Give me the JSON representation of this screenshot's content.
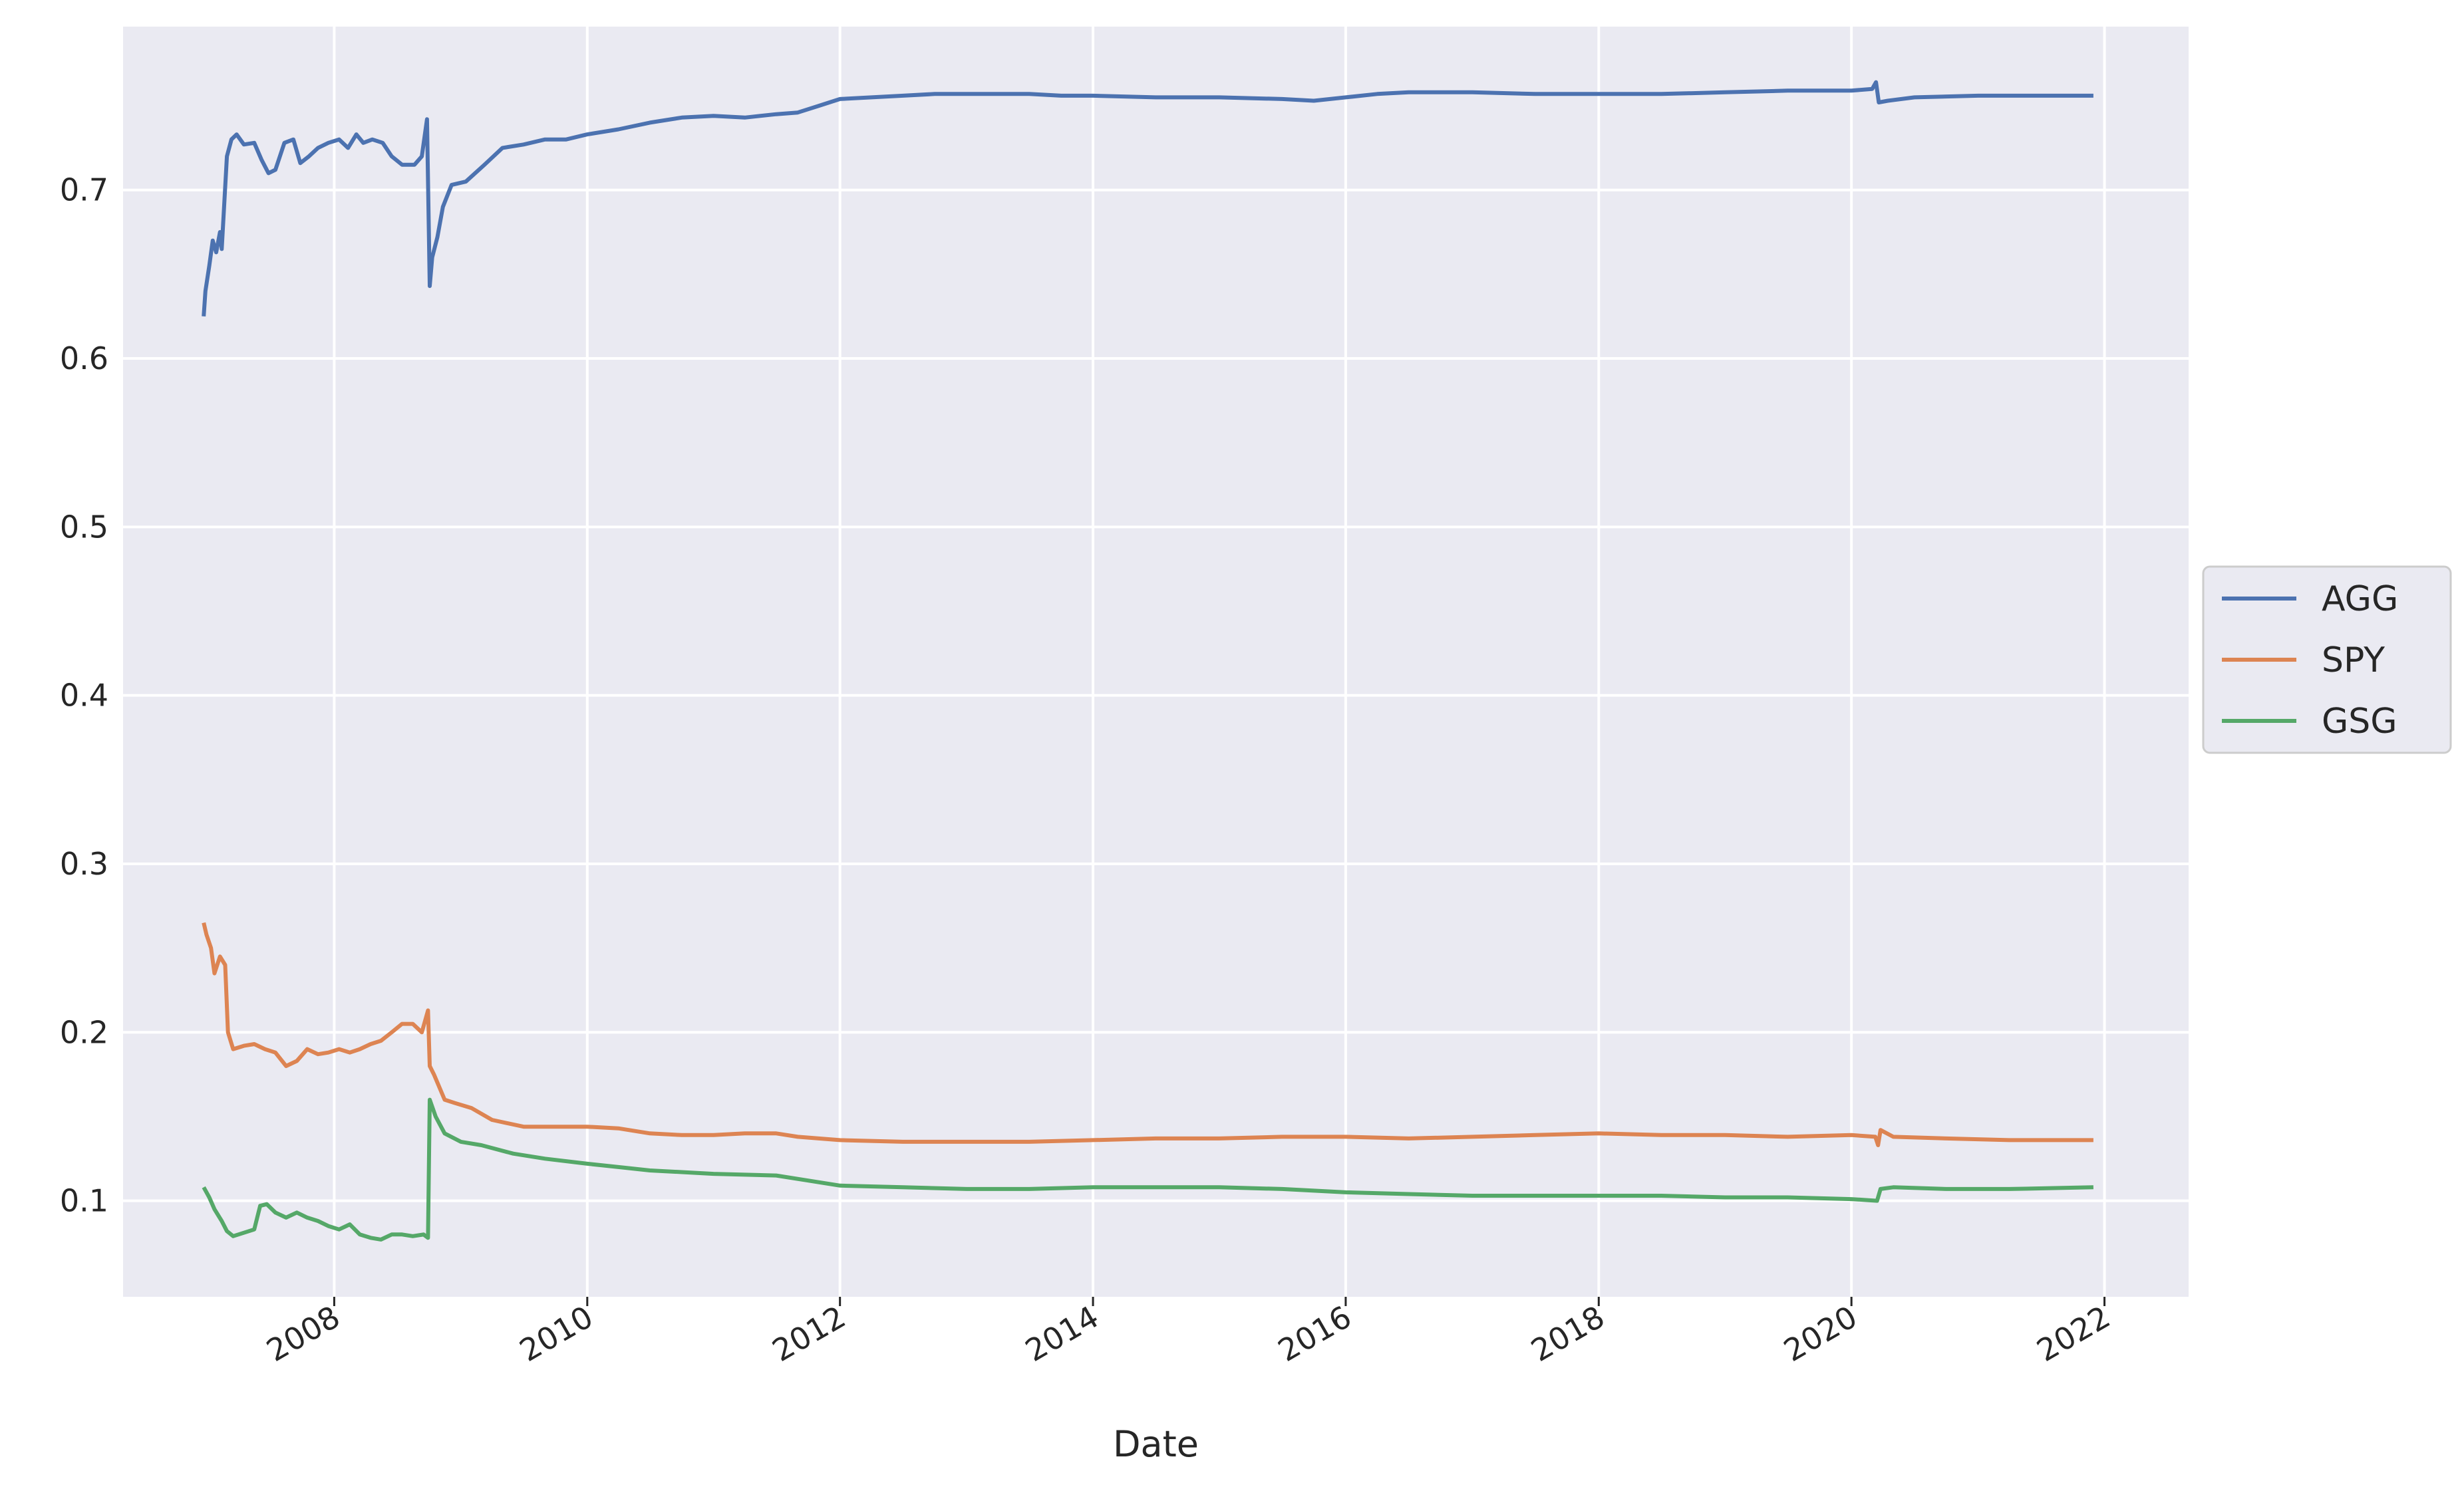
{
  "chart_data": {
    "type": "line",
    "title": "",
    "xlabel": "Date",
    "ylabel": "",
    "x_is_date": true,
    "xlim": [
      "2006-05-01",
      "2022-09-01"
    ],
    "ylim": [
      0.043,
      0.797
    ],
    "yticks": [
      0.1,
      0.2,
      0.3,
      0.4,
      0.5,
      0.6,
      0.7
    ],
    "ytick_labels": [
      "0.1",
      "0.2",
      "0.3",
      "0.4",
      "0.5",
      "0.6",
      "0.7"
    ],
    "xticks": [
      "2008-01-01",
      "2010-01-01",
      "2012-01-01",
      "2014-01-01",
      "2016-01-01",
      "2018-01-01",
      "2020-01-01",
      "2022-01-01"
    ],
    "xtick_labels": [
      "2008",
      "2010",
      "2012",
      "2014",
      "2016",
      "2018",
      "2020",
      "2022"
    ],
    "grid": true,
    "background_color": "#EAEAF2",
    "grid_color": "#FFFFFF",
    "legend_placement": "center-right, outside plot",
    "series": [
      {
        "name": "AGG",
        "color": "#4C72B0",
        "points": [
          [
            "2006-12-20",
            0.625
          ],
          [
            "2006-12-25",
            0.64
          ],
          [
            "2007-01-05",
            0.655
          ],
          [
            "2007-01-15",
            0.67
          ],
          [
            "2007-01-25",
            0.663
          ],
          [
            "2007-02-05",
            0.675
          ],
          [
            "2007-02-10",
            0.665
          ],
          [
            "2007-02-25",
            0.72
          ],
          [
            "2007-03-10",
            0.73
          ],
          [
            "2007-03-25",
            0.733
          ],
          [
            "2007-04-15",
            0.727
          ],
          [
            "2007-05-15",
            0.728
          ],
          [
            "2007-06-05",
            0.718
          ],
          [
            "2007-06-25",
            0.71
          ],
          [
            "2007-07-15",
            0.712
          ],
          [
            "2007-08-10",
            0.728
          ],
          [
            "2007-09-05",
            0.73
          ],
          [
            "2007-09-25",
            0.716
          ],
          [
            "2007-10-20",
            0.72
          ],
          [
            "2007-11-15",
            0.725
          ],
          [
            "2007-12-15",
            0.728
          ],
          [
            "2008-01-15",
            0.73
          ],
          [
            "2008-02-10",
            0.725
          ],
          [
            "2008-03-05",
            0.733
          ],
          [
            "2008-03-25",
            0.728
          ],
          [
            "2008-04-20",
            0.73
          ],
          [
            "2008-05-20",
            0.728
          ],
          [
            "2008-06-15",
            0.72
          ],
          [
            "2008-07-15",
            0.715
          ],
          [
            "2008-08-20",
            0.715
          ],
          [
            "2008-09-10",
            0.72
          ],
          [
            "2008-09-25",
            0.742
          ],
          [
            "2008-10-03",
            0.643
          ],
          [
            "2008-10-10",
            0.66
          ],
          [
            "2008-10-25",
            0.672
          ],
          [
            "2008-11-10",
            0.69
          ],
          [
            "2008-12-05",
            0.703
          ],
          [
            "2009-01-15",
            0.705
          ],
          [
            "2009-03-10",
            0.715
          ],
          [
            "2009-05-01",
            0.725
          ],
          [
            "2009-07-01",
            0.727
          ],
          [
            "2009-09-01",
            0.73
          ],
          [
            "2009-11-01",
            0.73
          ],
          [
            "2010-01-01",
            0.733
          ],
          [
            "2010-04-01",
            0.736
          ],
          [
            "2010-07-01",
            0.74
          ],
          [
            "2010-10-01",
            0.743
          ],
          [
            "2011-01-01",
            0.744
          ],
          [
            "2011-04-01",
            0.743
          ],
          [
            "2011-07-01",
            0.745
          ],
          [
            "2011-09-01",
            0.746
          ],
          [
            "2011-11-01",
            0.75
          ],
          [
            "2012-01-01",
            0.754
          ],
          [
            "2012-04-01",
            0.755
          ],
          [
            "2012-07-01",
            0.756
          ],
          [
            "2012-10-01",
            0.757
          ],
          [
            "2013-01-01",
            0.757
          ],
          [
            "2013-04-01",
            0.757
          ],
          [
            "2013-07-01",
            0.757
          ],
          [
            "2013-10-01",
            0.756
          ],
          [
            "2014-01-01",
            0.756
          ],
          [
            "2014-07-01",
            0.755
          ],
          [
            "2015-01-01",
            0.755
          ],
          [
            "2015-07-01",
            0.754
          ],
          [
            "2015-10-01",
            0.753
          ],
          [
            "2016-01-01",
            0.755
          ],
          [
            "2016-04-01",
            0.757
          ],
          [
            "2016-07-01",
            0.758
          ],
          [
            "2017-01-01",
            0.758
          ],
          [
            "2017-07-01",
            0.757
          ],
          [
            "2018-01-01",
            0.757
          ],
          [
            "2018-07-01",
            0.757
          ],
          [
            "2019-01-01",
            0.758
          ],
          [
            "2019-07-01",
            0.759
          ],
          [
            "2020-01-01",
            0.759
          ],
          [
            "2020-03-01",
            0.76
          ],
          [
            "2020-03-12",
            0.764
          ],
          [
            "2020-03-20",
            0.752
          ],
          [
            "2020-04-15",
            0.753
          ],
          [
            "2020-07-01",
            0.755
          ],
          [
            "2021-01-01",
            0.756
          ],
          [
            "2021-07-01",
            0.756
          ],
          [
            "2021-11-30",
            0.756
          ]
        ]
      },
      {
        "name": "SPY",
        "color": "#DD8452",
        "points": [
          [
            "2006-12-20",
            0.265
          ],
          [
            "2006-12-28",
            0.258
          ],
          [
            "2007-01-10",
            0.25
          ],
          [
            "2007-01-20",
            0.235
          ],
          [
            "2007-02-05",
            0.245
          ],
          [
            "2007-02-20",
            0.24
          ],
          [
            "2007-02-28",
            0.2
          ],
          [
            "2007-03-15",
            0.19
          ],
          [
            "2007-04-15",
            0.192
          ],
          [
            "2007-05-15",
            0.193
          ],
          [
            "2007-06-15",
            0.19
          ],
          [
            "2007-07-15",
            0.188
          ],
          [
            "2007-08-15",
            0.18
          ],
          [
            "2007-09-15",
            0.183
          ],
          [
            "2007-10-15",
            0.19
          ],
          [
            "2007-11-15",
            0.187
          ],
          [
            "2007-12-15",
            0.188
          ],
          [
            "2008-01-15",
            0.19
          ],
          [
            "2008-02-15",
            0.188
          ],
          [
            "2008-03-15",
            0.19
          ],
          [
            "2008-04-15",
            0.193
          ],
          [
            "2008-05-15",
            0.195
          ],
          [
            "2008-06-15",
            0.2
          ],
          [
            "2008-07-15",
            0.205
          ],
          [
            "2008-08-15",
            0.205
          ],
          [
            "2008-09-10",
            0.2
          ],
          [
            "2008-09-28",
            0.213
          ],
          [
            "2008-10-03",
            0.18
          ],
          [
            "2008-10-15",
            0.175
          ],
          [
            "2008-11-15",
            0.16
          ],
          [
            "2008-12-15",
            0.158
          ],
          [
            "2009-02-01",
            0.155
          ],
          [
            "2009-04-01",
            0.148
          ],
          [
            "2009-07-01",
            0.144
          ],
          [
            "2009-10-01",
            0.144
          ],
          [
            "2010-01-01",
            0.144
          ],
          [
            "2010-04-01",
            0.143
          ],
          [
            "2010-07-01",
            0.14
          ],
          [
            "2010-10-01",
            0.139
          ],
          [
            "2011-01-01",
            0.139
          ],
          [
            "2011-04-01",
            0.14
          ],
          [
            "2011-07-01",
            0.14
          ],
          [
            "2011-09-01",
            0.138
          ],
          [
            "2012-01-01",
            0.136
          ],
          [
            "2012-07-01",
            0.135
          ],
          [
            "2013-01-01",
            0.135
          ],
          [
            "2013-07-01",
            0.135
          ],
          [
            "2014-01-01",
            0.136
          ],
          [
            "2014-07-01",
            0.137
          ],
          [
            "2015-01-01",
            0.137
          ],
          [
            "2015-07-01",
            0.138
          ],
          [
            "2016-01-01",
            0.138
          ],
          [
            "2016-07-01",
            0.137
          ],
          [
            "2017-01-01",
            0.138
          ],
          [
            "2017-07-01",
            0.139
          ],
          [
            "2018-01-01",
            0.14
          ],
          [
            "2018-07-01",
            0.139
          ],
          [
            "2019-01-01",
            0.139
          ],
          [
            "2019-07-01",
            0.138
          ],
          [
            "2020-01-01",
            0.139
          ],
          [
            "2020-03-10",
            0.138
          ],
          [
            "2020-03-18",
            0.133
          ],
          [
            "2020-03-25",
            0.142
          ],
          [
            "2020-05-01",
            0.138
          ],
          [
            "2020-10-01",
            0.137
          ],
          [
            "2021-04-01",
            0.136
          ],
          [
            "2021-11-30",
            0.136
          ]
        ]
      },
      {
        "name": "GSG",
        "color": "#55A868",
        "points": [
          [
            "2006-12-20",
            0.108
          ],
          [
            "2007-01-05",
            0.102
          ],
          [
            "2007-01-20",
            0.095
          ],
          [
            "2007-02-10",
            0.088
          ],
          [
            "2007-02-25",
            0.082
          ],
          [
            "2007-03-15",
            0.079
          ],
          [
            "2007-04-15",
            0.081
          ],
          [
            "2007-05-15",
            0.083
          ],
          [
            "2007-06-01",
            0.097
          ],
          [
            "2007-06-20",
            0.098
          ],
          [
            "2007-07-15",
            0.093
          ],
          [
            "2007-08-15",
            0.09
          ],
          [
            "2007-09-15",
            0.093
          ],
          [
            "2007-10-15",
            0.09
          ],
          [
            "2007-11-15",
            0.088
          ],
          [
            "2007-12-15",
            0.085
          ],
          [
            "2008-01-15",
            0.083
          ],
          [
            "2008-02-15",
            0.086
          ],
          [
            "2008-03-15",
            0.08
          ],
          [
            "2008-04-15",
            0.078
          ],
          [
            "2008-05-15",
            0.077
          ],
          [
            "2008-06-15",
            0.08
          ],
          [
            "2008-07-15",
            0.08
          ],
          [
            "2008-08-15",
            0.079
          ],
          [
            "2008-09-15",
            0.08
          ],
          [
            "2008-09-28",
            0.078
          ],
          [
            "2008-10-03",
            0.16
          ],
          [
            "2008-10-20",
            0.15
          ],
          [
            "2008-11-15",
            0.14
          ],
          [
            "2009-01-01",
            0.135
          ],
          [
            "2009-03-01",
            0.133
          ],
          [
            "2009-06-01",
            0.128
          ],
          [
            "2009-09-01",
            0.125
          ],
          [
            "2010-01-01",
            0.122
          ],
          [
            "2010-04-01",
            0.12
          ],
          [
            "2010-07-01",
            0.118
          ],
          [
            "2010-10-01",
            0.117
          ],
          [
            "2011-01-01",
            0.116
          ],
          [
            "2011-07-01",
            0.115
          ],
          [
            "2011-10-01",
            0.112
          ],
          [
            "2012-01-01",
            0.109
          ],
          [
            "2012-07-01",
            0.108
          ],
          [
            "2013-01-01",
            0.107
          ],
          [
            "2013-07-01",
            0.107
          ],
          [
            "2014-01-01",
            0.108
          ],
          [
            "2014-07-01",
            0.108
          ],
          [
            "2015-01-01",
            0.108
          ],
          [
            "2015-07-01",
            0.107
          ],
          [
            "2016-01-01",
            0.105
          ],
          [
            "2016-07-01",
            0.104
          ],
          [
            "2017-01-01",
            0.103
          ],
          [
            "2017-07-01",
            0.103
          ],
          [
            "2018-01-01",
            0.103
          ],
          [
            "2018-07-01",
            0.103
          ],
          [
            "2019-01-01",
            0.102
          ],
          [
            "2019-07-01",
            0.102
          ],
          [
            "2020-01-01",
            0.101
          ],
          [
            "2020-03-15",
            0.1
          ],
          [
            "2020-03-25",
            0.107
          ],
          [
            "2020-05-01",
            0.108
          ],
          [
            "2020-10-01",
            0.107
          ],
          [
            "2021-04-01",
            0.107
          ],
          [
            "2021-11-30",
            0.108
          ]
        ]
      }
    ]
  }
}
